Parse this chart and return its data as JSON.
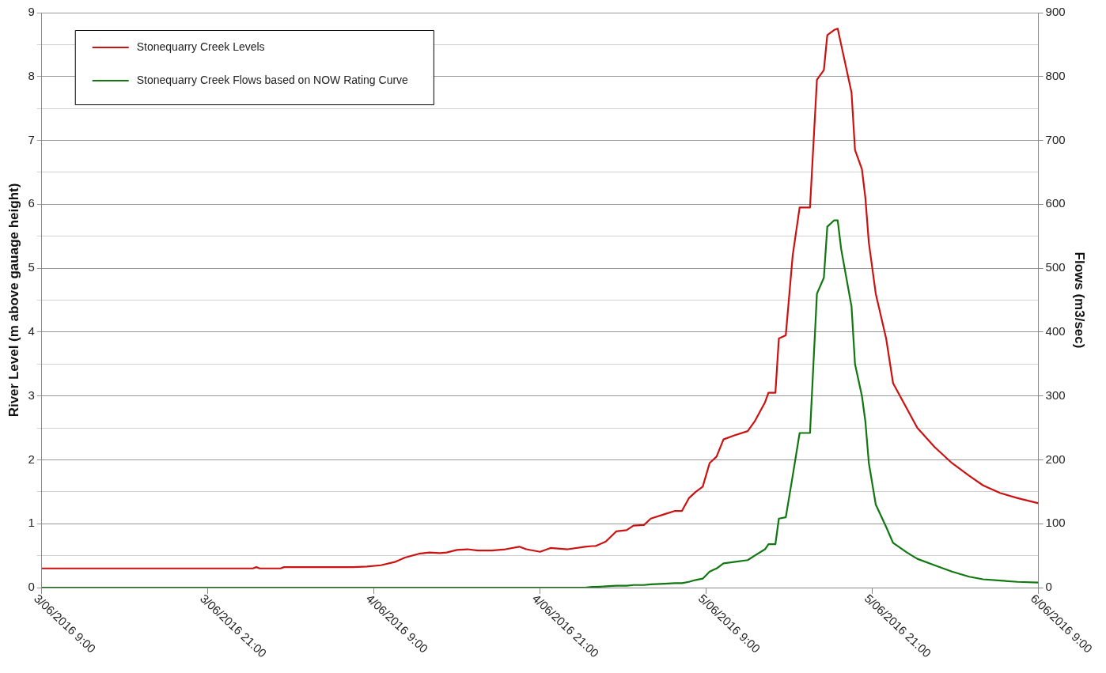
{
  "chart_data": {
    "type": "line",
    "ylabel": "River Level (m above gauage height)",
    "y2label": "Flows (m3/sec)",
    "x": [
      "2016-06-03T09:00",
      "2016-06-04T00:15",
      "2016-06-04T00:30",
      "2016-06-04T00:45",
      "2016-06-04T02:15",
      "2016-06-04T02:30",
      "2016-06-04T07:30",
      "2016-06-04T08:30",
      "2016-06-04T09:30",
      "2016-06-04T10:30",
      "2016-06-04T11:15",
      "2016-06-04T12:15",
      "2016-06-04T13:00",
      "2016-06-04T13:45",
      "2016-06-04T14:15",
      "2016-06-04T15:00",
      "2016-06-04T15:45",
      "2016-06-04T16:30",
      "2016-06-04T17:30",
      "2016-06-04T18:30",
      "2016-06-04T19:30",
      "2016-06-04T20:00",
      "2016-06-04T21:00",
      "2016-06-04T21:45",
      "2016-06-04T23:00",
      "2016-06-05T00:15",
      "2016-06-05T00:45",
      "2016-06-05T01:00",
      "2016-06-05T01:45",
      "2016-06-05T02:30",
      "2016-06-05T03:15",
      "2016-06-05T03:45",
      "2016-06-05T04:30",
      "2016-06-05T05:00",
      "2016-06-05T06:00",
      "2016-06-05T06:45",
      "2016-06-05T07:15",
      "2016-06-05T07:45",
      "2016-06-05T08:15",
      "2016-06-05T08:45",
      "2016-06-05T09:15",
      "2016-06-05T09:45",
      "2016-06-05T10:15",
      "2016-06-05T11:00",
      "2016-06-05T12:00",
      "2016-06-05T12:30",
      "2016-06-05T13:15",
      "2016-06-05T13:30",
      "2016-06-05T14:00",
      "2016-06-05T14:15",
      "2016-06-05T14:45",
      "2016-06-05T15:15",
      "2016-06-05T15:45",
      "2016-06-05T16:30",
      "2016-06-05T17:00",
      "2016-06-05T17:30",
      "2016-06-05T17:45",
      "2016-06-05T18:15",
      "2016-06-05T18:30",
      "2016-06-05T18:45",
      "2016-06-05T19:30",
      "2016-06-05T19:45",
      "2016-06-05T20:15",
      "2016-06-05T20:30",
      "2016-06-05T20:45",
      "2016-06-05T21:15",
      "2016-06-05T22:00",
      "2016-06-05T22:30",
      "2016-06-05T23:30",
      "2016-06-06T00:15",
      "2016-06-06T01:30",
      "2016-06-06T02:45",
      "2016-06-06T04:00",
      "2016-06-06T05:00",
      "2016-06-06T06:15",
      "2016-06-06T07:30",
      "2016-06-06T09:00"
    ],
    "series": [
      {
        "name": "Stonequarry Creek Levels",
        "color": "#cc1111",
        "values": [
          0.3,
          0.3,
          0.32,
          0.3,
          0.3,
          0.32,
          0.32,
          0.33,
          0.35,
          0.4,
          0.47,
          0.53,
          0.55,
          0.54,
          0.55,
          0.59,
          0.6,
          0.58,
          0.58,
          0.6,
          0.64,
          0.6,
          0.56,
          0.62,
          0.6,
          0.64,
          0.65,
          0.65,
          0.72,
          0.88,
          0.9,
          0.97,
          0.98,
          1.08,
          1.15,
          1.2,
          1.2,
          1.4,
          1.5,
          1.58,
          1.95,
          2.05,
          2.32,
          2.38,
          2.45,
          2.6,
          2.9,
          3.05,
          3.05,
          3.9,
          3.95,
          5.2,
          5.95,
          5.95,
          7.95,
          8.1,
          8.65,
          8.73,
          8.75,
          8.5,
          7.75,
          6.85,
          6.55,
          6.1,
          5.4,
          4.6,
          3.9,
          3.2,
          2.8,
          2.5,
          2.2,
          1.95,
          1.75,
          1.6,
          1.48,
          1.4,
          1.32
        ]
      },
      {
        "name": "Stonequarry Creek Flows based on NOW Rating Curve",
        "color": "#117711",
        "axis": "y2",
        "values": [
          0,
          0,
          0,
          0,
          0,
          0,
          0,
          0,
          0,
          0,
          0,
          0,
          0,
          0,
          0,
          0,
          0,
          0,
          0,
          0,
          0,
          0,
          0,
          0,
          0,
          0,
          1,
          1,
          2,
          3,
          3,
          4,
          4,
          5,
          6,
          7,
          7,
          9,
          12,
          14,
          25,
          30,
          38,
          40,
          43,
          50,
          60,
          68,
          68,
          108,
          110,
          175,
          242,
          242,
          460,
          485,
          565,
          575,
          575,
          530,
          440,
          350,
          300,
          260,
          195,
          130,
          95,
          70,
          55,
          45,
          35,
          25,
          17,
          13,
          11,
          9,
          8
        ]
      }
    ],
    "xlim": [
      "2016-06-03T09:00",
      "2016-06-06T09:00"
    ],
    "xticks": [
      {
        "value": "2016-06-03T09:00",
        "label": "3/06/2016 9:00"
      },
      {
        "value": "2016-06-03T21:00",
        "label": "3/06/2016 21:00"
      },
      {
        "value": "2016-06-04T09:00",
        "label": "4/06/2016 9:00"
      },
      {
        "value": "2016-06-04T21:00",
        "label": "4/06/2016 21:00"
      },
      {
        "value": "2016-06-05T09:00",
        "label": "5/06/2016 9:00"
      },
      {
        "value": "2016-06-05T21:00",
        "label": "5/06/2016 21:00"
      },
      {
        "value": "2016-06-06T09:00",
        "label": "6/06/2016 9:00"
      }
    ],
    "ylim": [
      0,
      9
    ],
    "yticks": [
      0,
      {
        "value": 0.5,
        "label": null
      },
      1,
      {
        "value": 1.5,
        "label": null
      },
      2,
      {
        "value": 2.5,
        "label": null
      },
      3,
      {
        "value": 3.5,
        "label": null
      },
      4,
      {
        "value": 4.5,
        "label": null
      },
      5,
      {
        "value": 5.5,
        "label": null
      },
      6,
      {
        "value": 6.5,
        "label": null
      },
      7,
      {
        "value": 7.5,
        "label": null
      },
      8,
      {
        "value": 8.5,
        "label": null
      },
      9
    ],
    "y2lim": [
      0,
      900
    ],
    "y2ticks": [
      0,
      100,
      200,
      300,
      400,
      500,
      600,
      700,
      800,
      900
    ],
    "grid": "y",
    "legend": "top left",
    "marker": "none",
    "line_style": "solid"
  }
}
